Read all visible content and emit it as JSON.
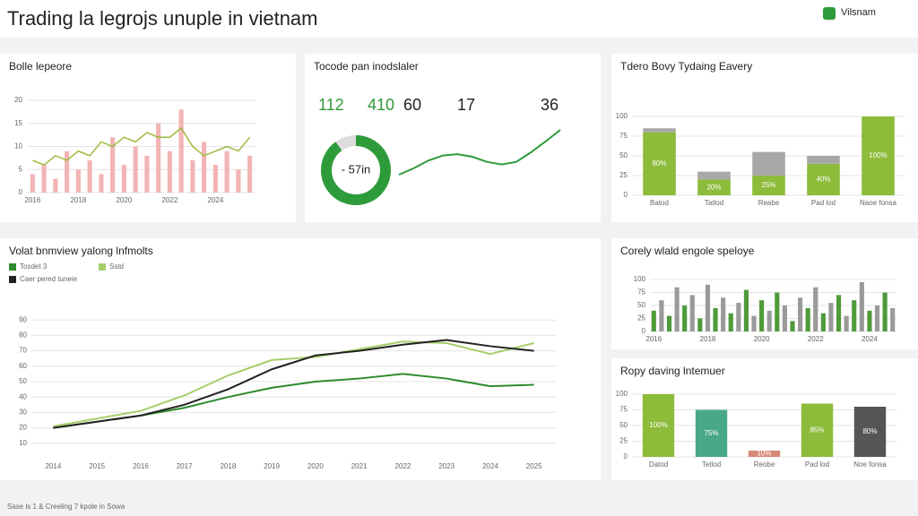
{
  "header": {
    "title": "Trading la legrojs unuple in vietnam",
    "brand": "Vilsnam"
  },
  "footer": "Sase ls 1 & Creeling 7 kpole in Sowa",
  "chart_data": [
    {
      "type": "combo",
      "title": "Bolle lepeore",
      "ylim": [
        0,
        20
      ],
      "yticks": [
        0,
        5,
        10,
        15,
        20
      ],
      "grid": true,
      "categories": [
        "2016",
        null,
        null,
        null,
        "2018",
        null,
        null,
        null,
        "2020",
        null,
        null,
        null,
        "2022",
        null,
        null,
        null,
        "2024",
        null,
        null,
        null
      ],
      "series": [
        {
          "name": "bars",
          "color": "#f2b4b4",
          "values": [
            4,
            6,
            3,
            9,
            5,
            7,
            4,
            12,
            6,
            10,
            8,
            15,
            9,
            18,
            7,
            11,
            6,
            9,
            5,
            8
          ]
        },
        {
          "name": "line",
          "color": "#9bbb3c",
          "values": [
            7,
            6,
            8,
            7,
            9,
            8,
            11,
            10,
            12,
            11,
            13,
            12,
            12,
            14,
            10,
            8,
            9,
            10,
            9,
            12
          ]
        }
      ]
    },
    {
      "type": "kpi",
      "title": "Tocode pan inodslaler",
      "values": [
        112,
        410,
        60,
        17,
        36
      ],
      "colors": [
        "#2e9b3a",
        "#2e9b3a",
        "#222222",
        "#222222",
        "#222222"
      ],
      "gauge": {
        "value": 90,
        "max": 100,
        "label": "- 57in",
        "color": "#2e9b3a"
      },
      "sparkline": {
        "color": "#2e9b3a",
        "values": [
          10,
          20,
          32,
          40,
          42,
          38,
          30,
          26,
          30,
          45,
          62,
          80
        ]
      }
    },
    {
      "type": "stacked",
      "title": "Tdero Bovy Tydaing Eavery",
      "ylim": [
        0,
        100
      ],
      "yticks": [
        0,
        25,
        50,
        75,
        100
      ],
      "grid": true,
      "categories": [
        "Batod",
        "Tatlod",
        "Reabe",
        "Pad lod",
        "Naoe fonsa"
      ],
      "series": [
        {
          "name": "green",
          "color": "#8dbb3a",
          "values": [
            80,
            20,
            25,
            40,
            100
          ],
          "value_labels": [
            "80%",
            "20%",
            "25%",
            "40%",
            "100%"
          ]
        },
        {
          "name": "gray",
          "color": "#a8a8a8",
          "values": [
            5,
            10,
            30,
            10,
            0
          ]
        }
      ]
    },
    {
      "type": "line",
      "title": "Volat bnmview yalong lnfmolts",
      "ylim": [
        0,
        100
      ],
      "yticks": [
        10,
        20,
        30,
        40,
        50,
        60,
        70,
        80,
        90
      ],
      "grid": true,
      "categories": [
        "2014",
        "2015",
        "2016",
        "2017",
        "2018",
        "2019",
        "2020",
        "2021",
        "2022",
        "2023",
        "2024",
        "2025"
      ],
      "series": [
        {
          "name": "Tosdet 3",
          "color": "#2e8b2e",
          "values": [
            20,
            24,
            28,
            33,
            40,
            46,
            50,
            52,
            55,
            52,
            47,
            48
          ]
        },
        {
          "name": "Sstd",
          "color": "#a6cf6a",
          "values": [
            21,
            26,
            31,
            41,
            54,
            64,
            66,
            71,
            76,
            75,
            68,
            75
          ]
        },
        {
          "name": "Caer pered tuneie",
          "color": "#222222",
          "values": [
            20,
            24,
            28,
            35,
            45,
            58,
            67,
            70,
            74,
            77,
            73,
            70
          ]
        }
      ]
    },
    {
      "type": "bar",
      "title": "Corely wlald engole speloye",
      "ylim": [
        0,
        100
      ],
      "yticks": [
        0,
        25,
        50,
        75,
        100
      ],
      "grid": true,
      "categories": [
        "2016",
        null,
        null,
        null,
        null,
        null,
        null,
        "2018",
        null,
        null,
        null,
        null,
        null,
        null,
        "2020",
        null,
        null,
        null,
        null,
        null,
        null,
        "2022",
        null,
        null,
        null,
        null,
        null,
        null,
        "2024",
        null,
        null,
        null
      ],
      "colors": [
        "#4f9a3a",
        "#9a9a9a"
      ],
      "values": [
        40,
        60,
        30,
        85,
        50,
        70,
        25,
        90,
        45,
        65,
        35,
        55,
        80,
        30,
        60,
        40,
        75,
        50,
        20,
        65,
        45,
        85,
        35,
        55,
        70,
        30,
        60,
        95,
        40,
        50,
        75,
        45
      ]
    },
    {
      "type": "bar",
      "title": "Ropy daving lntemuer",
      "ylim": [
        0,
        100
      ],
      "yticks": [
        0,
        25,
        50,
        75,
        100
      ],
      "grid": true,
      "categories": [
        "Datod",
        "Tetlod",
        "Reobe",
        "Pad lod",
        "Noe fonsa"
      ],
      "colors": [
        "#8dbb3a",
        "#4aa88a",
        "#d98a7a",
        "#8dbb3a",
        "#555555"
      ],
      "values": [
        100,
        75,
        10,
        85,
        80
      ],
      "value_labels": [
        "100%",
        "75%",
        "10%",
        "85%",
        "80%"
      ]
    }
  ]
}
